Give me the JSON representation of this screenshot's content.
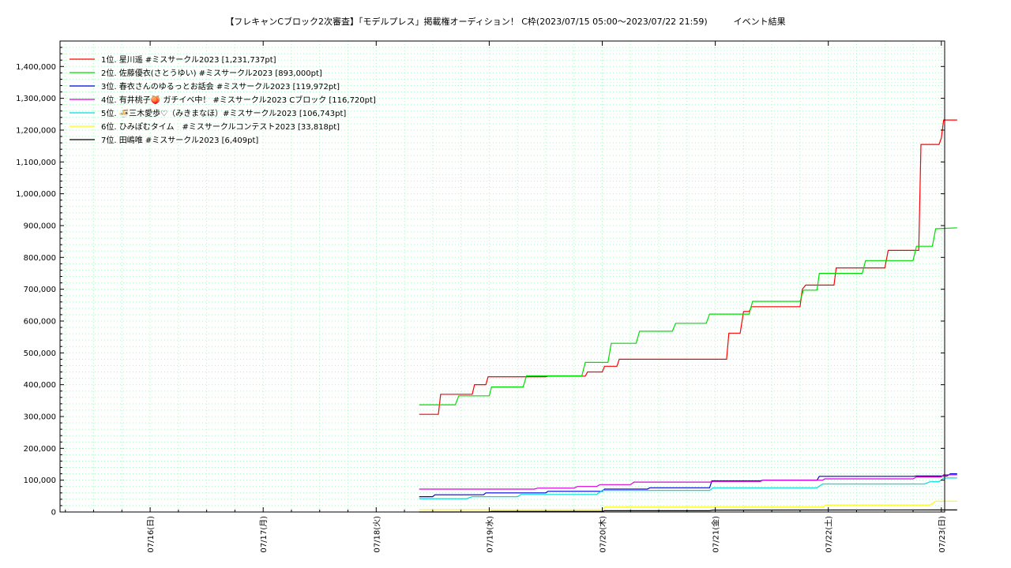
{
  "chart_data": {
    "type": "line",
    "title": "【フレキャンCブロック2次審査】「モデルプレス」掲載権オーディション！ C枠(2023/07/15 05:00～2023/07/22 21:59)　　　イベント結果",
    "xlabel": "",
    "ylabel": "",
    "xlim": [
      0,
      8
    ],
    "ylim": [
      0,
      1480000
    ],
    "grid": true,
    "legend_position": "top-left",
    "x_ticks": [
      {
        "x": 1,
        "label": "07/16(日)"
      },
      {
        "x": 2,
        "label": "07/17(月)"
      },
      {
        "x": 3,
        "label": "07/18(火)"
      },
      {
        "x": 4,
        "label": "07/19(水)"
      },
      {
        "x": 5,
        "label": "07/20(木)"
      },
      {
        "x": 6,
        "label": "07/21(金)"
      },
      {
        "x": 7,
        "label": "07/22(土)"
      },
      {
        "x": 8,
        "label": "07/23(日)"
      }
    ],
    "y_ticks": [
      {
        "y": 0,
        "label": "0"
      },
      {
        "y": 100000,
        "label": "100,000"
      },
      {
        "y": 200000,
        "label": "200,000"
      },
      {
        "y": 300000,
        "label": "300,000"
      },
      {
        "y": 400000,
        "label": "400,000"
      },
      {
        "y": 500000,
        "label": "500,000"
      },
      {
        "y": 600000,
        "label": "600,000"
      },
      {
        "y": 700000,
        "label": "700,000"
      },
      {
        "y": 800000,
        "label": "800,000"
      },
      {
        "y": 900000,
        "label": "900,000"
      },
      {
        "y": 1000000,
        "label": "1,000,000"
      },
      {
        "y": 1100000,
        "label": "1,100,000"
      },
      {
        "y": 1200000,
        "label": "1,200,000"
      },
      {
        "y": 1300000,
        "label": "1,300,000"
      },
      {
        "y": 1400000,
        "label": "1,400,000"
      }
    ],
    "series": [
      {
        "name": "1位. 星川遥 #ミスサークル2023 [1,231,737pt]",
        "color": "#ff0000",
        "points": [
          [
            3.38,
            307000
          ],
          [
            3.55,
            307000
          ],
          [
            3.57,
            370000
          ],
          [
            3.85,
            370000
          ],
          [
            3.87,
            400000
          ],
          [
            3.97,
            400000
          ],
          [
            3.99,
            425000
          ],
          [
            4.5,
            425000
          ],
          [
            4.52,
            427000
          ],
          [
            4.85,
            427000
          ],
          [
            4.87,
            440000
          ],
          [
            5.0,
            440000
          ],
          [
            5.02,
            458000
          ],
          [
            5.13,
            458000
          ],
          [
            5.15,
            480000
          ],
          [
            6.1,
            480000
          ],
          [
            6.12,
            562000
          ],
          [
            6.22,
            562000
          ],
          [
            6.25,
            630000
          ],
          [
            6.3,
            630000
          ],
          [
            6.32,
            645000
          ],
          [
            6.75,
            645000
          ],
          [
            6.77,
            700000
          ],
          [
            6.8,
            713000
          ],
          [
            7.05,
            713000
          ],
          [
            7.07,
            767000
          ],
          [
            7.5,
            767000
          ],
          [
            7.53,
            822000
          ],
          [
            7.8,
            822000
          ],
          [
            7.82,
            1155000
          ],
          [
            7.98,
            1155000
          ],
          [
            8.0,
            1175000
          ],
          [
            8.02,
            1231737
          ],
          [
            8.14,
            1231737
          ]
        ]
      },
      {
        "name": "2位. 佐藤優衣(さとうゆい) #ミスサークル2023 [893,000pt]",
        "color": "#00dd00",
        "points": [
          [
            3.38,
            337000
          ],
          [
            3.7,
            337000
          ],
          [
            3.73,
            365000
          ],
          [
            4.0,
            365000
          ],
          [
            4.02,
            393000
          ],
          [
            4.3,
            393000
          ],
          [
            4.33,
            428000
          ],
          [
            4.82,
            428000
          ],
          [
            4.85,
            470000
          ],
          [
            5.05,
            470000
          ],
          [
            5.08,
            530000
          ],
          [
            5.3,
            530000
          ],
          [
            5.33,
            568000
          ],
          [
            5.62,
            568000
          ],
          [
            5.65,
            593000
          ],
          [
            5.92,
            593000
          ],
          [
            5.95,
            622000
          ],
          [
            6.3,
            622000
          ],
          [
            6.33,
            662000
          ],
          [
            6.75,
            662000
          ],
          [
            6.78,
            697000
          ],
          [
            6.9,
            697000
          ],
          [
            6.92,
            750000
          ],
          [
            7.3,
            750000
          ],
          [
            7.33,
            790000
          ],
          [
            7.75,
            790000
          ],
          [
            7.78,
            835000
          ],
          [
            7.92,
            835000
          ],
          [
            7.95,
            890000
          ],
          [
            8.14,
            893000
          ]
        ]
      },
      {
        "name": "3位. 春衣さんのゆるっとお話会 #ミスサークル2023 [119,972pt]",
        "color": "#0000dd",
        "points": [
          [
            3.38,
            48000
          ],
          [
            3.5,
            48000
          ],
          [
            3.52,
            54000
          ],
          [
            3.95,
            54000
          ],
          [
            3.97,
            60000
          ],
          [
            4.5,
            60000
          ],
          [
            4.52,
            65000
          ],
          [
            5.0,
            65000
          ],
          [
            5.02,
            72000
          ],
          [
            5.4,
            72000
          ],
          [
            5.42,
            76000
          ],
          [
            5.95,
            76000
          ],
          [
            5.97,
            98000
          ],
          [
            6.4,
            98000
          ],
          [
            6.42,
            100000
          ],
          [
            6.9,
            100000
          ],
          [
            6.92,
            112000
          ],
          [
            7.75,
            112000
          ],
          [
            7.78,
            113000
          ],
          [
            8.05,
            113000
          ],
          [
            8.08,
            120000
          ],
          [
            8.14,
            119972
          ]
        ]
      },
      {
        "name": "4位. 有井桃子🍑 ガチイベ中！ #ミスサークル2023 Cブロック [116,720pt]",
        "color": "#dd00dd",
        "points": [
          [
            3.38,
            72000
          ],
          [
            4.4,
            72000
          ],
          [
            4.43,
            75000
          ],
          [
            4.75,
            75000
          ],
          [
            4.78,
            80000
          ],
          [
            4.95,
            80000
          ],
          [
            4.98,
            86000
          ],
          [
            5.25,
            86000
          ],
          [
            5.28,
            94000
          ],
          [
            5.95,
            94000
          ],
          [
            5.98,
            96000
          ],
          [
            6.4,
            96000
          ],
          [
            6.42,
            100000
          ],
          [
            6.95,
            100000
          ],
          [
            6.97,
            104000
          ],
          [
            7.75,
            104000
          ],
          [
            7.78,
            110000
          ],
          [
            8.0,
            110000
          ],
          [
            8.02,
            116720
          ],
          [
            8.14,
            116720
          ]
        ]
      },
      {
        "name": "5位. 🍜三木愛歩♡（みきまなほ）#ミスサークル2023 [106,743pt]",
        "color": "#00dddd",
        "points": [
          [
            3.38,
            42000
          ],
          [
            3.8,
            42000
          ],
          [
            3.85,
            48000
          ],
          [
            4.25,
            48000
          ],
          [
            4.28,
            55000
          ],
          [
            4.95,
            55000
          ],
          [
            5.0,
            68000
          ],
          [
            5.95,
            68000
          ],
          [
            5.98,
            76000
          ],
          [
            6.9,
            76000
          ],
          [
            6.95,
            88000
          ],
          [
            7.85,
            88000
          ],
          [
            7.9,
            95000
          ],
          [
            7.98,
            95000
          ],
          [
            8.02,
            106743
          ],
          [
            8.14,
            106743
          ]
        ]
      },
      {
        "name": "6位. ひみぽむタイム　#ミスサークルコンテスト2023 [33,818pt]",
        "color": "#ffff00",
        "points": [
          [
            3.38,
            8000
          ],
          [
            5.0,
            8000
          ],
          [
            5.02,
            15000
          ],
          [
            6.95,
            15000
          ],
          [
            6.98,
            22000
          ],
          [
            7.9,
            22000
          ],
          [
            7.95,
            33818
          ],
          [
            8.14,
            33818
          ]
        ]
      },
      {
        "name": "7位. 田嶋唯 #ミスサークル2023 [6,409pt]",
        "color": "#000000",
        "points": [
          [
            3.38,
            0
          ],
          [
            4.0,
            0
          ],
          [
            4.02,
            2000
          ],
          [
            5.0,
            2000
          ],
          [
            5.02,
            4000
          ],
          [
            5.95,
            4000
          ],
          [
            5.98,
            6000
          ],
          [
            8.14,
            6409
          ]
        ]
      }
    ]
  }
}
